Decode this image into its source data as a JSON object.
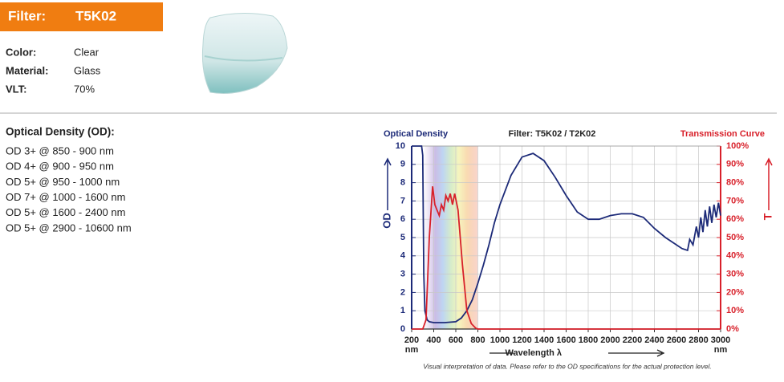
{
  "header": {
    "filter_label": "Filter:",
    "filter_code": "T5K02"
  },
  "specs": [
    {
      "label": "Color:",
      "value": "Clear"
    },
    {
      "label": "Material:",
      "value": "Glass"
    },
    {
      "label": "VLT:",
      "value": "70%"
    }
  ],
  "od_section": {
    "title": "Optical Density (OD):",
    "lines": [
      "OD 3+ @ 850 - 900 nm",
      "OD 4+ @ 900 - 950 nm",
      "OD 5+ @ 950 - 1000 nm",
      "OD 7+ @ 1000 - 1600 nm",
      "OD 5+ @ 1600 - 2400 nm",
      "OD 5+ @ 2900 - 10600 nm"
    ]
  },
  "chart_data": {
    "type": "line",
    "title": "Filter: T5K02 / T2K02",
    "y_title": "Optical Density",
    "y2_title": "Transmission Curve",
    "y_label": "OD",
    "y2_label": "T",
    "x_label": "Wavelength λ",
    "x_unit": "nm",
    "footnote": "Visual interpretation of data. Please refer to the OD specifications for the actual protection level.",
    "xlim": [
      200,
      3000
    ],
    "xticks": [
      200,
      400,
      600,
      800,
      1000,
      1200,
      1400,
      1600,
      1800,
      2000,
      2200,
      2400,
      2600,
      2800,
      3000
    ],
    "ylim": [
      0,
      10
    ],
    "yticks": [
      0,
      1,
      2,
      3,
      4,
      5,
      6,
      7,
      8,
      9,
      10
    ],
    "y2lim": [
      0,
      100
    ],
    "y2ticks": [
      {
        "value": 0,
        "label": "0%"
      },
      {
        "value": 10,
        "label": "10%"
      },
      {
        "value": 20,
        "label": "20%"
      },
      {
        "value": 30,
        "label": "30%"
      },
      {
        "value": 40,
        "label": "40%"
      },
      {
        "value": 50,
        "label": "50%"
      },
      {
        "value": 60,
        "label": "60%"
      },
      {
        "value": 70,
        "label": "70%"
      },
      {
        "value": 80,
        "label": "80%"
      },
      {
        "value": 90,
        "label": "90%"
      },
      {
        "value": 100,
        "label": "100%"
      }
    ],
    "grid": true,
    "series": [
      {
        "name": "Optical Density",
        "color": "#1c2a78",
        "x": [
          200,
          290,
          300,
          310,
          320,
          340,
          360,
          400,
          500,
          600,
          650,
          700,
          750,
          800,
          850,
          900,
          950,
          1000,
          1100,
          1200,
          1300,
          1400,
          1500,
          1600,
          1700,
          1800,
          1900,
          2000,
          2100,
          2200,
          2300,
          2400,
          2500,
          2600,
          2650,
          2700,
          2720,
          2750,
          2780,
          2800,
          2820,
          2840,
          2860,
          2880,
          2900,
          2920,
          2940,
          2960,
          2980,
          3000
        ],
        "values": [
          10,
          10,
          9.5,
          3,
          1,
          0.5,
          0.4,
          0.35,
          0.35,
          0.4,
          0.6,
          1.0,
          1.6,
          2.5,
          3.5,
          4.6,
          5.8,
          6.8,
          8.4,
          9.4,
          9.6,
          9.2,
          8.3,
          7.3,
          6.4,
          6.0,
          6.0,
          6.2,
          6.3,
          6.3,
          6.1,
          5.5,
          5.0,
          4.6,
          4.4,
          4.3,
          4.9,
          4.6,
          5.6,
          5.0,
          6.1,
          5.3,
          6.5,
          5.6,
          6.7,
          5.8,
          6.8,
          6.1,
          6.9,
          6.2
        ]
      },
      {
        "name": "Transmission Curve",
        "color": "#d8202a",
        "axis": "y2",
        "x": [
          200,
          300,
          330,
          360,
          390,
          410,
          430,
          450,
          470,
          490,
          510,
          530,
          550,
          570,
          590,
          620,
          660,
          700,
          740,
          780,
          800,
          3000
        ],
        "values": [
          0,
          0,
          5,
          50,
          78,
          68,
          65,
          62,
          68,
          65,
          73,
          70,
          74,
          68,
          74,
          65,
          35,
          10,
          3,
          0.5,
          0,
          0
        ]
      }
    ]
  }
}
